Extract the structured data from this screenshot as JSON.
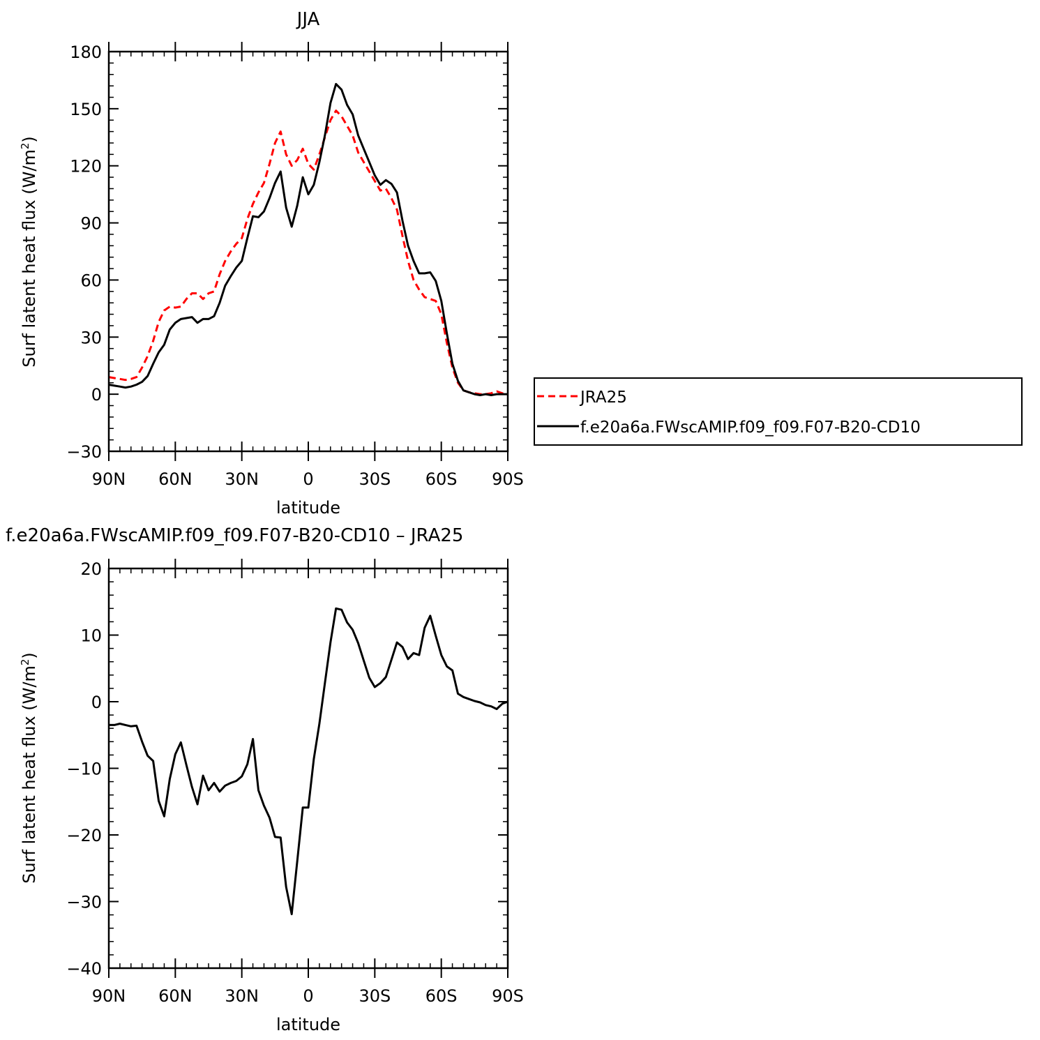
{
  "chart_data": [
    {
      "type": "line",
      "title": "JJA",
      "xlabel": "latitude",
      "ylabel": "Surf latent heat flux (W/m²)",
      "ylim": [
        -30,
        180
      ],
      "xlim": [
        90,
        -90
      ],
      "yticks": [
        -30,
        0,
        30,
        60,
        90,
        120,
        150,
        180
      ],
      "xticks": [
        {
          "value": 90,
          "label": "90N"
        },
        {
          "value": 60,
          "label": "60N"
        },
        {
          "value": 30,
          "label": "30N"
        },
        {
          "value": 0,
          "label": "0"
        },
        {
          "value": -30,
          "label": "30S"
        },
        {
          "value": -60,
          "label": "60S"
        },
        {
          "value": -90,
          "label": "90S"
        }
      ],
      "grid": false,
      "legend": "right",
      "series": [
        {
          "name": "JRA25",
          "color": "#ff0000",
          "dash": true,
          "x": [
            90,
            87.5,
            85,
            82.5,
            80,
            77.5,
            75,
            72.5,
            70,
            67.5,
            65,
            62.5,
            60,
            57.5,
            55,
            52.5,
            50,
            47.5,
            45,
            42.5,
            40,
            37.5,
            35,
            32.5,
            30,
            27.5,
            25,
            22.5,
            20,
            17.5,
            15,
            12.5,
            10,
            7.5,
            5,
            2.5,
            0,
            -2.5,
            -5,
            -7.5,
            -10,
            -12.5,
            -15,
            -17.5,
            -20,
            -22.5,
            -25,
            -27.5,
            -30,
            -32.5,
            -35,
            -37.5,
            -40,
            -42.5,
            -45,
            -47.5,
            -50,
            -52.5,
            -55,
            -57.5,
            -60,
            -62.5,
            -65,
            -67.5,
            -70,
            -72.5,
            -75,
            -77.5,
            -80,
            -82.5,
            -85,
            -87.5,
            -90
          ],
          "y": [
            9,
            8.5,
            8,
            7.5,
            8,
            9,
            14,
            20,
            28,
            38,
            44,
            46,
            45.5,
            46,
            50,
            53,
            53,
            50,
            53,
            54,
            63,
            70,
            75,
            79,
            82,
            92,
            100,
            106,
            111,
            121,
            132,
            138,
            126,
            120,
            123,
            129,
            121,
            118,
            126,
            135,
            144,
            149,
            146,
            141,
            136,
            127,
            122,
            117,
            112,
            107,
            108,
            103,
            97,
            83,
            70,
            60,
            55,
            51,
            50,
            49,
            42,
            27,
            14,
            6,
            2,
            1,
            0.5,
            0,
            0,
            0.5,
            1.5,
            0.5,
            0
          ]
        },
        {
          "name": "f.e20a6a.FWscAMIP.f09_f09.F07-B20-CD10",
          "color": "#000000",
          "dash": false,
          "x": [
            90,
            87.5,
            85,
            82.5,
            80,
            77.5,
            75,
            72.5,
            70,
            67.5,
            65,
            62.5,
            60,
            57.5,
            55,
            52.5,
            50,
            47.5,
            45,
            42.5,
            40,
            37.5,
            35,
            32.5,
            30,
            27.5,
            25,
            22.5,
            20,
            17.5,
            15,
            12.5,
            10,
            7.5,
            5,
            2.5,
            0,
            -2.5,
            -5,
            -7.5,
            -10,
            -12.5,
            -15,
            -17.5,
            -20,
            -22.5,
            -25,
            -27.5,
            -30,
            -32.5,
            -35,
            -37.5,
            -40,
            -42.5,
            -45,
            -47.5,
            -50,
            -52.5,
            -55,
            -57.5,
            -60,
            -62.5,
            -65,
            -67.5,
            -70,
            -72.5,
            -75,
            -77.5,
            -80,
            -82.5,
            -85,
            -87.5,
            -90
          ],
          "y": [
            5,
            4.5,
            4,
            3.5,
            4,
            5,
            6.5,
            9.5,
            16,
            22,
            26,
            34,
            37.5,
            39.5,
            40,
            40.5,
            37.5,
            39.5,
            39.5,
            41,
            48,
            57,
            62,
            66.5,
            70,
            82,
            93.5,
            93,
            96,
            103,
            111,
            117,
            98,
            88,
            99,
            114,
            105,
            110,
            122,
            136,
            153,
            163,
            160,
            152,
            147,
            136,
            129,
            122,
            115,
            110,
            112.5,
            110.5,
            106,
            91,
            78,
            70,
            63.5,
            63.5,
            64,
            59.5,
            49,
            32,
            16,
            7,
            2,
            1,
            0,
            -0.5,
            0,
            -0.5,
            0,
            0,
            0
          ]
        }
      ]
    },
    {
      "type": "line",
      "title": "f.e20a6a.FWscAMIP.f09_f09.F07-B20-CD10 – JRA25",
      "xlabel": "latitude",
      "ylabel": "Surf latent heat flux (W/m²)",
      "ylim": [
        -40,
        20
      ],
      "xlim": [
        90,
        -90
      ],
      "yticks": [
        -40,
        -30,
        -20,
        -10,
        0,
        10,
        20
      ],
      "xticks": [
        {
          "value": 90,
          "label": "90N"
        },
        {
          "value": 60,
          "label": "60N"
        },
        {
          "value": 30,
          "label": "30N"
        },
        {
          "value": 0,
          "label": "0"
        },
        {
          "value": -30,
          "label": "30S"
        },
        {
          "value": -60,
          "label": "60S"
        },
        {
          "value": -90,
          "label": "90S"
        }
      ],
      "grid": false,
      "series": [
        {
          "color": "#000000",
          "dash": false,
          "x": [
            90,
            87.5,
            85,
            82.5,
            80,
            77.5,
            75,
            72.5,
            70,
            67.5,
            65,
            62.5,
            60,
            57.5,
            55,
            52.5,
            50,
            47.5,
            45,
            42.5,
            40,
            37.5,
            35,
            32.5,
            30,
            27.5,
            25,
            22.5,
            20,
            17.5,
            15,
            12.5,
            10,
            7.5,
            5,
            2.5,
            0,
            -2.5,
            -5,
            -7.5,
            -10,
            -12.5,
            -15,
            -17.5,
            -20,
            -22.5,
            -25,
            -27.5,
            -30,
            -32.5,
            -35,
            -37.5,
            -40,
            -42.5,
            -45,
            -47.5,
            -50,
            -52.5,
            -55,
            -57.5,
            -60,
            -62.5,
            -65,
            -67.5,
            -70,
            -72.5,
            -75,
            -77.5,
            -80,
            -82.5,
            -85,
            -87.5,
            -90
          ],
          "y": [
            -3.5,
            -3.5,
            -3.3,
            -3.5,
            -3.7,
            -3.6,
            -6,
            -8.1,
            -8.9,
            -14.9,
            -17.2,
            -11.6,
            -7.9,
            -6.1,
            -9.5,
            -12.8,
            -15.4,
            -11.1,
            -13.3,
            -12.2,
            -13.5,
            -12.6,
            -12.2,
            -11.9,
            -11.2,
            -9.4,
            -5.6,
            -13.3,
            -15.6,
            -17.4,
            -20.3,
            -20.4,
            -27.8,
            -31.9,
            -24,
            -15.9,
            -15.9,
            -8.6,
            -3.3,
            2.8,
            8.9,
            14,
            13.8,
            11.9,
            10.8,
            8.8,
            6.2,
            3.6,
            2.2,
            2.8,
            3.7,
            6.3,
            8.9,
            8.2,
            6.4,
            7.3,
            7,
            11.1,
            12.9,
            9.9,
            7,
            5.3,
            4.7,
            1.2,
            0.7,
            0.4,
            0.1,
            -0.1,
            -0.5,
            -0.7,
            -1.1,
            -0.3,
            0
          ]
        }
      ]
    }
  ]
}
